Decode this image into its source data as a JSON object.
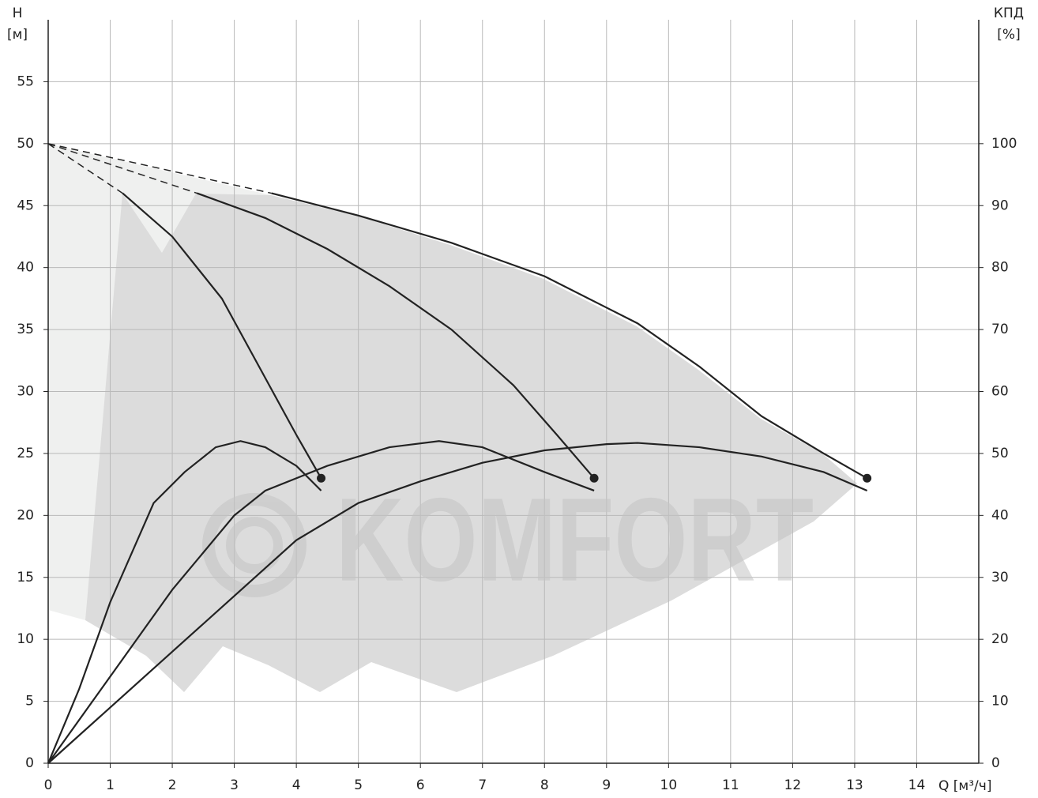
{
  "chart_data": {
    "type": "line",
    "y_label": "H",
    "y_unit": "[м]",
    "y2_label": "КПД",
    "y2_unit": "[%]",
    "x_label": "Q [м³/ч]",
    "watermark": "KOMFORT",
    "xlim": [
      0,
      15
    ],
    "xticks": [
      0,
      1,
      2,
      3,
      4,
      5,
      6,
      7,
      8,
      9,
      10,
      11,
      12,
      13,
      14
    ],
    "ylim": [
      0,
      60
    ],
    "yticks": [
      0,
      5,
      10,
      15,
      20,
      25,
      30,
      35,
      40,
      45,
      50,
      55
    ],
    "y2lim": [
      0,
      120
    ],
    "y2ticks": [
      0,
      10,
      20,
      30,
      40,
      50,
      60,
      70,
      80,
      90,
      100
    ],
    "grid": true,
    "series": [
      {
        "color": "#222222",
        "dashed": true,
        "x": [
          0,
          1.2
        ],
        "values": [
          50,
          46
        ]
      },
      {
        "color": "#222222",
        "dashed": true,
        "x": [
          0,
          2.4
        ],
        "values": [
          50,
          46
        ]
      },
      {
        "color": "#222222",
        "dashed": true,
        "x": [
          0,
          3.6
        ],
        "values": [
          50,
          46
        ]
      },
      {
        "color": "#222222",
        "end_marker": true,
        "x": [
          1.2,
          2,
          2.8,
          3.4,
          4,
          4.4
        ],
        "values": [
          46,
          42.5,
          37.5,
          32,
          26.5,
          23
        ]
      },
      {
        "color": "#222222",
        "end_marker": true,
        "x": [
          2.4,
          3.5,
          4.5,
          5.5,
          6.5,
          7.5,
          8.2,
          8.8
        ],
        "values": [
          46,
          44,
          41.5,
          38.5,
          35,
          30.5,
          26.5,
          23
        ]
      },
      {
        "color": "#222222",
        "end_marker": true,
        "x": [
          3.6,
          5,
          6.5,
          8,
          9.5,
          10.5,
          11.5,
          12.5,
          13.2
        ],
        "values": [
          46,
          44.2,
          42,
          39.3,
          35.5,
          32,
          28,
          25,
          23
        ]
      },
      {
        "color": "#222222",
        "axis": "y2",
        "x": [
          0,
          0.5,
          1,
          1.7,
          2.2,
          2.7,
          3.1,
          3.5,
          4,
          4.4
        ],
        "values": [
          0,
          12,
          26,
          42,
          47,
          51,
          52,
          51,
          48,
          44
        ]
      },
      {
        "color": "#222222",
        "axis": "y2",
        "x": [
          0,
          1,
          2,
          3,
          3.5,
          4.5,
          5.5,
          6.3,
          7,
          8,
          8.8
        ],
        "values": [
          0,
          14,
          28,
          40,
          44,
          48,
          51,
          52,
          51,
          47,
          44
        ]
      },
      {
        "color": "#222222",
        "axis": "y2",
        "x": [
          0,
          2,
          4,
          5,
          6,
          7,
          8,
          9,
          9.5,
          10.5,
          11.5,
          12.5,
          13.2
        ],
        "values": [
          0,
          18,
          36,
          42,
          45.5,
          48.5,
          50.5,
          51.5,
          51.7,
          51,
          49.5,
          47,
          44
        ]
      }
    ]
  }
}
